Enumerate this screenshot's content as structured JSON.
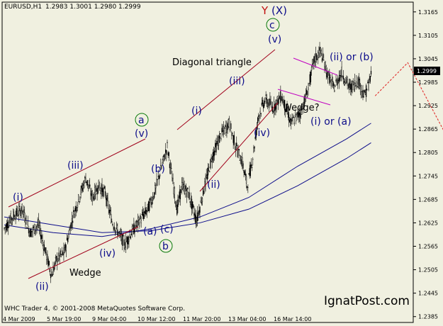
{
  "header": {
    "symbol": "EURUSD,H1",
    "ohlc": "1.2983 1.3001 1.2980 1.2999"
  },
  "footer": {
    "copyright": "WHC Trader 4, © 2001-2008 MetaQuotes Software Corp.",
    "brand": "IgnatPost.com"
  },
  "colors": {
    "background": "#f0f0e0",
    "frame": "#000000",
    "candle": "#000000",
    "ma_fast": "#0d0d8a",
    "ma_slow": "#0d0d8a",
    "channel": "#a0001a",
    "wedge_upper": "#c000c0",
    "projection": "#e02020",
    "wave_label": "#0d0d8a",
    "circle_label": "#0a7a0a",
    "y_label": "#c01010",
    "x_label": "#0d0d8a",
    "price_box": "#000000"
  },
  "chart_data": {
    "type": "candlestick",
    "title": "",
    "symbol": "EURUSD,H1",
    "ylim": [
      1.237,
      1.319
    ],
    "y_ticks": [
      "1.3165",
      "1.3105",
      "1.3045",
      "1.2985",
      "1.2925",
      "1.2865",
      "1.2805",
      "1.2745",
      "1.2685",
      "1.2625",
      "1.2565",
      "1.2505",
      "1.2445",
      "1.2385"
    ],
    "current_price": "1.2999",
    "x_ticks": [
      "4 Mar 2009",
      "5 Mar 19:00",
      "9 Mar 04:00",
      "10 Mar 12:00",
      "11 Mar 20:00",
      "13 Mar 04:00",
      "16 Mar 14:00"
    ],
    "price_path": [
      [
        0,
        1.261
      ],
      [
        10,
        1.264
      ],
      [
        22,
        1.266
      ],
      [
        32,
        1.26
      ],
      [
        42,
        1.262
      ],
      [
        52,
        1.254
      ],
      [
        58,
        1.249
      ],
      [
        64,
        1.253
      ],
      [
        74,
        1.255
      ],
      [
        84,
        1.264
      ],
      [
        92,
        1.269
      ],
      [
        100,
        1.274
      ],
      [
        108,
        1.269
      ],
      [
        116,
        1.272
      ],
      [
        124,
        1.27
      ],
      [
        132,
        1.263
      ],
      [
        140,
        1.26
      ],
      [
        148,
        1.257
      ],
      [
        156,
        1.26
      ],
      [
        166,
        1.263
      ],
      [
        176,
        1.266
      ],
      [
        184,
        1.27
      ],
      [
        192,
        1.276
      ],
      [
        200,
        1.282
      ],
      [
        206,
        1.274
      ],
      [
        212,
        1.266
      ],
      [
        218,
        1.272
      ],
      [
        226,
        1.27
      ],
      [
        236,
        1.263
      ],
      [
        246,
        1.272
      ],
      [
        256,
        1.28
      ],
      [
        266,
        1.285
      ],
      [
        276,
        1.288
      ],
      [
        284,
        1.282
      ],
      [
        292,
        1.278
      ],
      [
        298,
        1.272
      ],
      [
        304,
        1.278
      ],
      [
        312,
        1.29
      ],
      [
        320,
        1.294
      ],
      [
        330,
        1.292
      ],
      [
        340,
        1.295
      ],
      [
        352,
        1.288
      ],
      [
        364,
        1.291
      ],
      [
        372,
        1.296
      ],
      [
        380,
        1.304
      ],
      [
        388,
        1.3065
      ],
      [
        396,
        1.301
      ],
      [
        404,
        1.297
      ],
      [
        414,
        1.301
      ],
      [
        424,
        1.297
      ],
      [
        434,
        1.299
      ],
      [
        442,
        1.295
      ],
      [
        450,
        1.2999
      ]
    ],
    "moving_averages": [
      {
        "name": "",
        "points": [
          [
            0,
            1.262
          ],
          [
            60,
            1.26
          ],
          [
            120,
            1.259
          ],
          [
            180,
            1.261
          ],
          [
            240,
            1.264
          ],
          [
            300,
            1.269
          ],
          [
            360,
            1.277
          ],
          [
            420,
            1.284
          ],
          [
            450,
            1.288
          ]
        ]
      },
      {
        "name": "",
        "points": [
          [
            0,
            1.264
          ],
          [
            60,
            1.262
          ],
          [
            120,
            1.26
          ],
          [
            180,
            1.2605
          ],
          [
            240,
            1.2625
          ],
          [
            300,
            1.266
          ],
          [
            360,
            1.272
          ],
          [
            420,
            1.279
          ],
          [
            450,
            1.283
          ]
        ]
      }
    ],
    "projection": [
      [
        455,
        1.295
      ],
      [
        495,
        1.3035
      ],
      [
        580,
        1.27
      ]
    ],
    "annotations": {
      "wave_labels": [
        "(i)",
        "(ii)",
        "(iii)",
        "(iv)",
        "(v)",
        "(a)",
        "(b)",
        "(c)",
        "(i)",
        "(ii)",
        "(iii)",
        "(iv)",
        "(v)",
        "(i) or (a)",
        "(ii) or (b)"
      ],
      "circled": [
        "a",
        "b",
        "c"
      ],
      "y_label": "Y",
      "x_label": "(X)",
      "notes": [
        "Wedge",
        "Diagonal triangle",
        "Wedge?"
      ]
    }
  }
}
